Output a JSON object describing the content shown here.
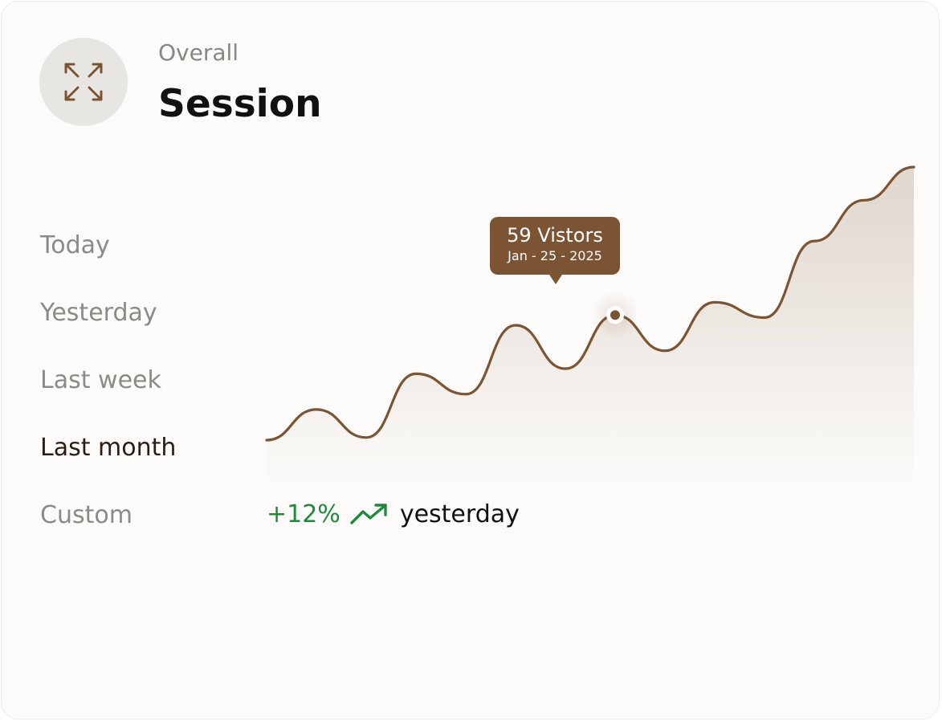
{
  "header": {
    "overline": "Overall",
    "title": "Session",
    "expand_icon": "expand-arrows-icon"
  },
  "ranges": {
    "items": [
      {
        "label": "Today"
      },
      {
        "label": "Yesterday"
      },
      {
        "label": "Last week"
      },
      {
        "label": "Last month"
      },
      {
        "label": "Custom"
      }
    ],
    "selected": "Last month"
  },
  "tooltip": {
    "value": "59 Vistors",
    "date": "Jan - 25 - 2025"
  },
  "trend": {
    "change": "+12%",
    "icon": "trending-up-icon",
    "label": "yesterday"
  },
  "colors": {
    "accent": "#7b5533",
    "positive": "#1f8a3a",
    "card_background": "#fcfbf9",
    "icon_circle": "#e7e6e3"
  },
  "chart_data": {
    "type": "area",
    "series": [
      {
        "values": [
          10,
          22,
          11,
          36,
          28,
          55,
          38,
          59,
          45,
          64,
          58,
          88,
          104,
          117
        ]
      }
    ],
    "highlight_index": 7,
    "grid": false,
    "axes_visible": false
  }
}
